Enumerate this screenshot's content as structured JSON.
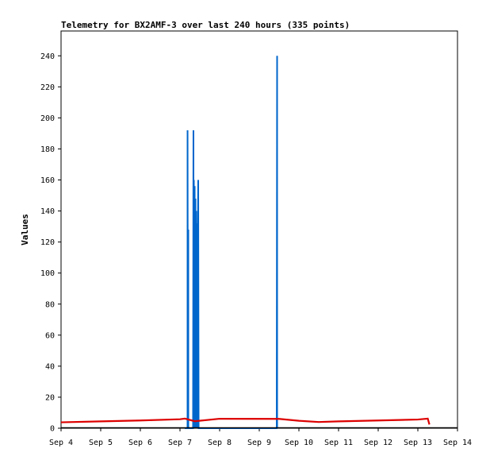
{
  "chart_data": {
    "type": "line",
    "title": "Telemetry for BX2AMF-3 over last 240 hours (335 points)",
    "xlabel": "",
    "ylabel": "Values",
    "x_axis_kind": "date",
    "xlim": [
      "Sep 4",
      "Sep 14"
    ],
    "x_ticks": [
      "Sep 4",
      "Sep 5",
      "Sep 6",
      "Sep 7",
      "Sep 8",
      "Sep 9",
      "Sep 10",
      "Sep 11",
      "Sep 12",
      "Sep 13",
      "Sep 14"
    ],
    "ylim": [
      0,
      256
    ],
    "y_ticks": [
      0,
      20,
      40,
      60,
      80,
      100,
      120,
      140,
      160,
      180,
      200,
      220,
      240
    ],
    "grid": false,
    "legend": "none",
    "series": [
      {
        "color": "#0066cc",
        "x_days_after_sep4": [
          3.12,
          3.19,
          3.19,
          3.2,
          3.21,
          3.21,
          3.28,
          3.33,
          3.34,
          3.34,
          3.35,
          3.36,
          3.37,
          3.38,
          3.39,
          3.4,
          3.41,
          3.42,
          3.43,
          3.44,
          3.44,
          3.45,
          3.46,
          3.47,
          3.48,
          3.48,
          3.49,
          5.44,
          5.45,
          5.45,
          5.46
        ],
        "x": [
          "Sep 7 02:53",
          "Sep 7 04:34",
          "Sep 7 04:35",
          "Sep 7 04:48",
          "Sep 7 05:02",
          "Sep 7 05:03",
          "Sep 7 06:43",
          "Sep 7 07:55",
          "Sep 7 08:09",
          "Sep 7 08:10",
          "Sep 7 08:24",
          "Sep 7 08:38",
          "Sep 7 08:53",
          "Sep 7 09:07",
          "Sep 7 09:22",
          "Sep 7 09:36",
          "Sep 7 09:50",
          "Sep 7 10:05",
          "Sep 7 10:19",
          "Sep 7 10:34",
          "Sep 7 10:35",
          "Sep 7 10:48",
          "Sep 7 11:02",
          "Sep 7 11:17",
          "Sep 7 11:31",
          "Sep 7 11:32",
          "Sep 7 11:46",
          "Sep 9 10:34",
          "Sep 9 10:48",
          "Sep 9 10:49",
          "Sep 9 11:02"
        ],
        "values": [
          0,
          0,
          192,
          0,
          128,
          0,
          0,
          0,
          192,
          0,
          160,
          0,
          156,
          0,
          148,
          0,
          140,
          0,
          132,
          0,
          124,
          116,
          160,
          0,
          0,
          0,
          0,
          0,
          240,
          0,
          0
        ]
      },
      {
        "color": "#dd0000",
        "x": [
          "Sep 4 00:00",
          "Sep 5 00:00",
          "Sep 6 00:00",
          "Sep 7 00:00",
          "Sep 7 03:00",
          "Sep 7 09:00",
          "Sep 8 00:00",
          "Sep 9 12:00",
          "Sep 10 00:00",
          "Sep 10 12:00",
          "Sep 11 00:00",
          "Sep 12 00:00",
          "Sep 13 00:00",
          "Sep 13 06:00",
          "Sep 13 07:00"
        ],
        "values": [
          3.8,
          4.4,
          5.0,
          5.8,
          6.2,
          4.5,
          6.1,
          6.0,
          4.8,
          4.0,
          4.4,
          5.0,
          5.6,
          6.2,
          2.4
        ]
      }
    ]
  }
}
